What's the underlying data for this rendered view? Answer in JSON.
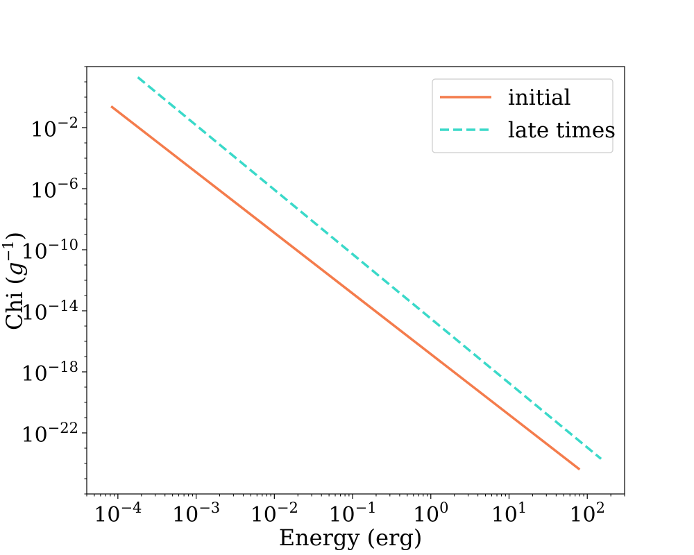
{
  "chart_data": {
    "type": "line",
    "xlabel": "Energy (erg)",
    "ylabel_text": "Chi (",
    "ylabel_symbol": "g",
    "ylabel_exponent": "−1",
    "ylabel_close": ")",
    "xscale": "log",
    "yscale": "log",
    "xlim": [
      4e-05,
      300
    ],
    "ylim": [
      1e-26,
      100.0
    ],
    "x_ticks": [
      {
        "value": 0.0001,
        "base": "10",
        "exp": "−4"
      },
      {
        "value": 0.001,
        "base": "10",
        "exp": "−3"
      },
      {
        "value": 0.01,
        "base": "10",
        "exp": "−2"
      },
      {
        "value": 0.1,
        "base": "10",
        "exp": "−1"
      },
      {
        "value": 1,
        "base": "10",
        "exp": "0"
      },
      {
        "value": 10,
        "base": "10",
        "exp": "1"
      },
      {
        "value": 100,
        "base": "10",
        "exp": "2"
      }
    ],
    "y_ticks": [
      {
        "value": 0.01,
        "base": "10",
        "exp": "−2"
      },
      {
        "value": 1e-06,
        "base": "10",
        "exp": "−6"
      },
      {
        "value": 1e-10,
        "base": "10",
        "exp": "−10"
      },
      {
        "value": 1e-14,
        "base": "10",
        "exp": "−14"
      },
      {
        "value": 1e-18,
        "base": "10",
        "exp": "−18"
      },
      {
        "value": 1e-22,
        "base": "10",
        "exp": "−22"
      }
    ],
    "grid": false,
    "legend_position": "top-right",
    "series": [
      {
        "name": "initial",
        "color": "#f47c4c",
        "style": "solid",
        "x": [
          8.2e-05,
          80
        ],
        "y": [
          0.25,
          4e-25
        ]
      },
      {
        "name": "late times",
        "color": "#3ad9c9",
        "style": "dashed",
        "x": [
          0.00018,
          150
        ],
        "y": [
          20,
          2e-24
        ]
      }
    ]
  }
}
